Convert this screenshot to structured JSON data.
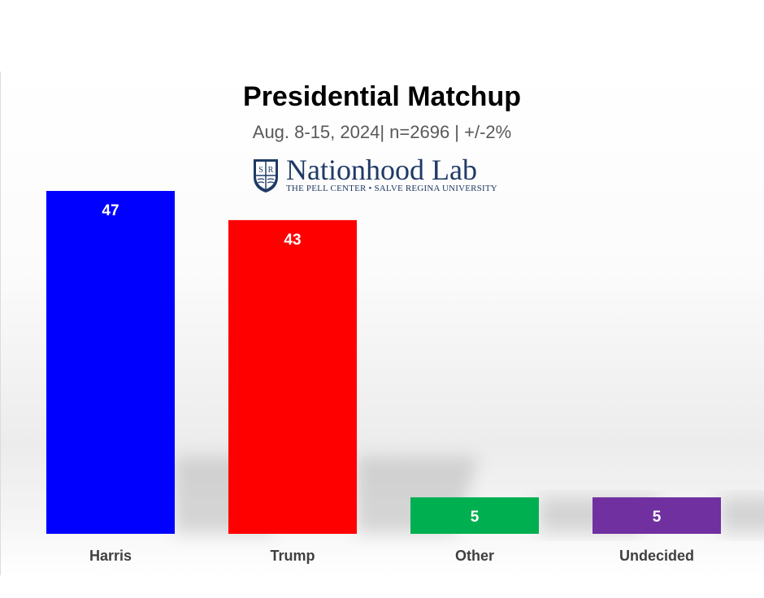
{
  "header": {
    "title": "Presidential Matchup",
    "subtitle": "Aug. 8-15, 2024| n=2696 | +/-2%"
  },
  "logo": {
    "name": "Nationhood Lab",
    "tagline": "THE PELL CENTER • SALVE REGINA UNIVERSITY",
    "crest_letters": [
      "S",
      "R"
    ]
  },
  "chart_data": {
    "type": "bar",
    "title": "Presidential Matchup",
    "subtitle": "Aug. 8-15, 2024| n=2696 | +/-2%",
    "categories": [
      "Harris",
      "Trump",
      "Other",
      "Undecided"
    ],
    "values": [
      47,
      43,
      5,
      5
    ],
    "colors": [
      "#0000ff",
      "#ff0000",
      "#00b050",
      "#7030a0"
    ],
    "xlabel": "",
    "ylabel": "",
    "ylim": [
      0,
      47
    ],
    "grid": false,
    "legend": "none",
    "data_labels": true
  }
}
